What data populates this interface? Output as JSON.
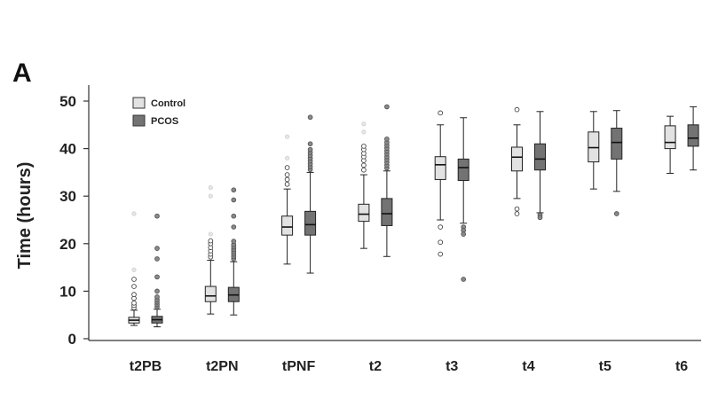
{
  "panel_label": "A",
  "chart_data": {
    "type": "box",
    "ylabel": "Time (hours)",
    "xlabel": "",
    "ylim": [
      0,
      50
    ],
    "yticks": [
      0,
      10,
      20,
      30,
      40,
      50
    ],
    "grid": false,
    "legend_position": "top-left",
    "categories": [
      "t2PB",
      "t2PN",
      "tPNF",
      "t2",
      "t3",
      "t4",
      "t5",
      "t6"
    ],
    "series": [
      {
        "name": "Control",
        "color": "#e2e2e2",
        "boxes": [
          {
            "whislo": 2.8,
            "q1": 3.3,
            "med": 3.9,
            "q3": 4.5,
            "whishi": 6.0,
            "outliers": [
              6.5,
              7.0,
              7.5,
              8.5,
              9.3,
              11.0,
              12.5
            ],
            "faint": [
              26.3,
              14.5
            ]
          },
          {
            "whislo": 5.2,
            "q1": 7.8,
            "med": 9.0,
            "q3": 11.0,
            "whishi": 16.5,
            "outliers": [
              17.2,
              17.8,
              18.5,
              19.2,
              20.0,
              20.6
            ],
            "faint": [
              22.0,
              30.0,
              31.8
            ]
          },
          {
            "whislo": 15.7,
            "q1": 21.8,
            "med": 23.5,
            "q3": 25.8,
            "whishi": 31.5,
            "outliers": [
              32.5,
              33.5,
              34.5,
              36.0
            ],
            "faint": [
              38.0,
              42.5
            ]
          },
          {
            "whislo": 19.0,
            "q1": 24.7,
            "med": 26.2,
            "q3": 28.3,
            "whishi": 34.5,
            "outliers": [
              35.5,
              36.5,
              37.5,
              38.3,
              39.0,
              39.8,
              40.5
            ],
            "faint": [
              43.5,
              45.2
            ]
          },
          {
            "whislo": 25.0,
            "q1": 33.5,
            "med": 36.6,
            "q3": 38.3,
            "whishi": 45.0,
            "outliers": [
              47.5,
              23.5,
              20.3,
              17.8
            ],
            "faint": []
          },
          {
            "whislo": 29.5,
            "q1": 35.3,
            "med": 38.2,
            "q3": 40.3,
            "whishi": 45.0,
            "outliers": [
              48.2,
              27.3,
              26.3
            ],
            "faint": []
          },
          {
            "whislo": 31.5,
            "q1": 37.2,
            "med": 40.2,
            "q3": 43.5,
            "whishi": 47.8,
            "outliers": [],
            "faint": []
          },
          {
            "whislo": 34.8,
            "q1": 40.0,
            "med": 41.3,
            "q3": 44.8,
            "whishi": 46.8,
            "outliers": [],
            "faint": []
          }
        ]
      },
      {
        "name": "PCOS",
        "color": "#737373",
        "boxes": [
          {
            "whislo": 2.5,
            "q1": 3.3,
            "med": 4.0,
            "q3": 4.7,
            "whishi": 6.2,
            "outliers": [
              6.7,
              7.2,
              7.7,
              8.2,
              8.8,
              10.0,
              13.0,
              16.8,
              19.0,
              25.8
            ],
            "faint": []
          },
          {
            "whislo": 5.0,
            "q1": 7.8,
            "med": 9.2,
            "q3": 10.8,
            "whishi": 16.2,
            "outliers": [
              16.8,
              17.3,
              17.8,
              18.3,
              18.8,
              19.3,
              19.8,
              20.5,
              23.5,
              25.8,
              29.2,
              31.3
            ],
            "faint": []
          },
          {
            "whislo": 13.8,
            "q1": 21.8,
            "med": 24.0,
            "q3": 26.8,
            "whishi": 35.0,
            "outliers": [
              35.6,
              36.2,
              36.8,
              37.4,
              38.0,
              38.6,
              39.2,
              39.8,
              41.0,
              46.6
            ],
            "faint": []
          },
          {
            "whislo": 17.3,
            "q1": 23.8,
            "med": 26.3,
            "q3": 29.5,
            "whishi": 35.3,
            "outliers": [
              35.9,
              36.5,
              37.1,
              37.7,
              38.3,
              38.9,
              39.5,
              40.1,
              40.7,
              41.3,
              42.0,
              48.8
            ],
            "faint": []
          },
          {
            "whislo": 24.3,
            "q1": 33.3,
            "med": 36.0,
            "q3": 37.8,
            "whishi": 46.5,
            "outliers": [
              23.5,
              22.8,
              22.0,
              12.5
            ],
            "faint": []
          },
          {
            "whislo": 26.5,
            "q1": 35.5,
            "med": 37.8,
            "q3": 41.0,
            "whishi": 47.8,
            "outliers": [
              26.0,
              25.5
            ],
            "faint": []
          },
          {
            "whislo": 31.0,
            "q1": 37.8,
            "med": 41.3,
            "q3": 44.3,
            "whishi": 48.0,
            "outliers": [
              26.3
            ],
            "faint": []
          },
          {
            "whislo": 35.5,
            "q1": 40.5,
            "med": 42.2,
            "q3": 45.0,
            "whishi": 48.8,
            "outliers": [],
            "faint": []
          }
        ]
      }
    ]
  }
}
